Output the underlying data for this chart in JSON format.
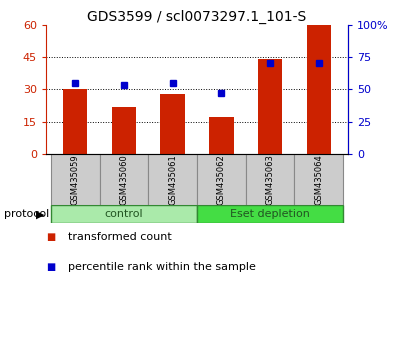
{
  "title": "GDS3599 / scl0073297.1_101-S",
  "samples": [
    "GSM435059",
    "GSM435060",
    "GSM435061",
    "GSM435062",
    "GSM435063",
    "GSM435064"
  ],
  "red_values": [
    30,
    22,
    28,
    17,
    44,
    60
  ],
  "blue_values": [
    55,
    53,
    55,
    47,
    70,
    70
  ],
  "left_ylim": [
    0,
    60
  ],
  "right_ylim": [
    0,
    100
  ],
  "left_yticks": [
    0,
    15,
    30,
    45,
    60
  ],
  "right_yticks": [
    0,
    25,
    50,
    75,
    100
  ],
  "right_yticklabels": [
    "0",
    "25",
    "50",
    "75",
    "100%"
  ],
  "grid_values": [
    15,
    30,
    45
  ],
  "bar_color": "#cc2200",
  "square_color": "#0000cc",
  "bar_width": 0.5,
  "groups": [
    {
      "label": "control",
      "indices": [
        0,
        1,
        2
      ],
      "color": "#aaeaaa"
    },
    {
      "label": "Eset depletion",
      "indices": [
        3,
        4,
        5
      ],
      "color": "#44dd44"
    }
  ],
  "protocol_label": "protocol",
  "legend_items": [
    {
      "color": "#cc2200",
      "label": "transformed count"
    },
    {
      "color": "#0000cc",
      "label": "percentile rank within the sample"
    }
  ],
  "sample_bg_color": "#cccccc",
  "sample_edge_color": "#888888",
  "title_fontsize": 10,
  "tick_label_fontsize": 8,
  "sample_fontsize": 6,
  "group_fontsize": 8,
  "legend_fontsize": 8,
  "protocol_fontsize": 8
}
